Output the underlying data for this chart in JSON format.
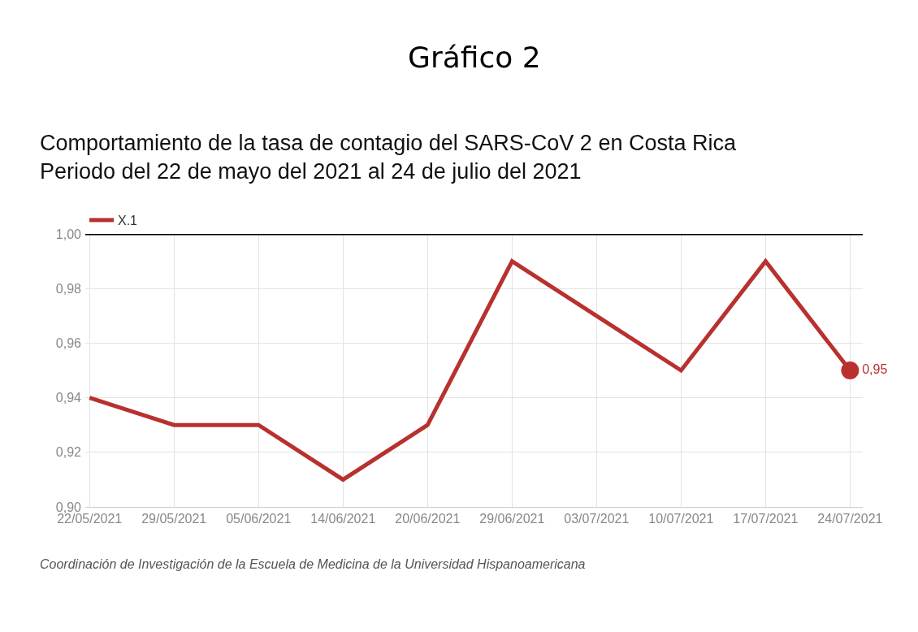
{
  "chart_data": {
    "type": "line",
    "title": "Gráfico 2",
    "subtitle": "Comportamiento de la tasa de contagio del SARS-CoV 2 en Costa Rica\nPeriodo del 22 de mayo del 2021 al 24 de julio del 2021",
    "categories": [
      "22/05/2021",
      "29/05/2021",
      "05/06/2021",
      "14/06/2021",
      "20/06/2021",
      "29/06/2021",
      "03/07/2021",
      "10/07/2021",
      "17/07/2021",
      "24/07/2021"
    ],
    "series": [
      {
        "name": "X.1",
        "color": "#b8312f",
        "values": [
          0.94,
          0.93,
          0.93,
          0.91,
          0.93,
          0.99,
          0.97,
          0.95,
          0.99,
          0.95
        ],
        "value_labels": [
          null,
          null,
          null,
          null,
          null,
          null,
          null,
          null,
          null,
          "0,95"
        ]
      }
    ],
    "ylim": [
      0.9,
      1.0
    ],
    "yticks": [
      {
        "value": 0.9,
        "label": "0,90"
      },
      {
        "value": 0.92,
        "label": "0,92"
      },
      {
        "value": 0.94,
        "label": "0,94"
      },
      {
        "value": 0.96,
        "label": "0,96"
      },
      {
        "value": 0.98,
        "label": "0,98"
      },
      {
        "value": 1.0,
        "label": "1,00"
      }
    ],
    "ref_lines": [
      {
        "axis": "y",
        "value": 1.0,
        "color": "#000000"
      }
    ],
    "grid": true,
    "legend": "top left",
    "marker": "none",
    "line_style": "solid",
    "annotations": [
      "Coordinación de Investigación de la Escuela de Medicina de la Universidad Hispanoamericana"
    ]
  }
}
